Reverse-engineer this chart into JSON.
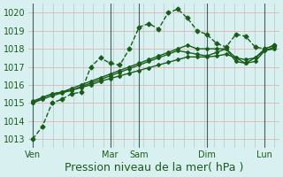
{
  "title": "",
  "xlabel": "Pression niveau de la mer( hPa )",
  "ylim": [
    1012.5,
    1020.5
  ],
  "yticks": [
    1013,
    1014,
    1015,
    1016,
    1017,
    1018,
    1019,
    1020
  ],
  "xtick_labels": [
    "Ven",
    "Mar",
    "Sam",
    "Dim",
    "Lun"
  ],
  "xtick_pos": [
    0,
    8,
    11,
    18,
    24
  ],
  "bg_color": "#d8f0f0",
  "line_color": "#1a5c1a",
  "grid_h_color": "#f0a0a0",
  "grid_v_color": "#b0c8c8",
  "line1": [
    1013.0,
    1013.7,
    1015.0,
    1015.2,
    1015.5,
    1015.6,
    1017.0,
    1017.5,
    1017.2,
    1017.1,
    1018.0,
    1019.2,
    1019.4,
    1019.1,
    1020.0,
    1020.2,
    1019.7,
    1019.0,
    1018.8,
    1018.3,
    1018.1,
    1018.8,
    1018.7,
    1018.1,
    1018.0,
    1018.2
  ],
  "line2": [
    1015.0,
    1015.3,
    1015.5,
    1015.6,
    1015.8,
    1016.0,
    1016.2,
    1016.4,
    1016.6,
    1016.8,
    1017.0,
    1017.2,
    1017.4,
    1017.6,
    1017.8,
    1018.0,
    1018.2,
    1018.0,
    1018.0,
    1018.0,
    1018.0,
    1017.5,
    1017.2,
    1017.5,
    1018.0,
    1018.2
  ],
  "line3": [
    1015.1,
    1015.3,
    1015.5,
    1015.6,
    1015.7,
    1015.9,
    1016.1,
    1016.3,
    1016.5,
    1016.7,
    1016.9,
    1017.1,
    1017.3,
    1017.5,
    1017.7,
    1017.9,
    1017.8,
    1017.7,
    1017.6,
    1017.8,
    1018.0,
    1017.3,
    1017.2,
    1017.3,
    1017.9,
    1018.1
  ],
  "line4": [
    1015.0,
    1015.2,
    1015.4,
    1015.55,
    1015.7,
    1015.85,
    1016.0,
    1016.2,
    1016.35,
    1016.5,
    1016.65,
    1016.8,
    1016.95,
    1017.1,
    1017.25,
    1017.4,
    1017.55,
    1017.55,
    1017.55,
    1017.6,
    1017.7,
    1017.5,
    1017.4,
    1017.5,
    1017.9,
    1018.0
  ],
  "vline_pos": [
    0,
    8,
    11,
    18,
    24
  ],
  "marker_indices1": [
    0,
    2,
    6,
    7,
    8,
    9,
    10,
    11,
    12,
    14,
    15,
    16,
    17,
    18,
    19,
    20,
    21,
    22,
    23,
    24,
    25
  ],
  "n_points": 26,
  "fontsize_xlabel": 9,
  "fontsize_tick": 7
}
